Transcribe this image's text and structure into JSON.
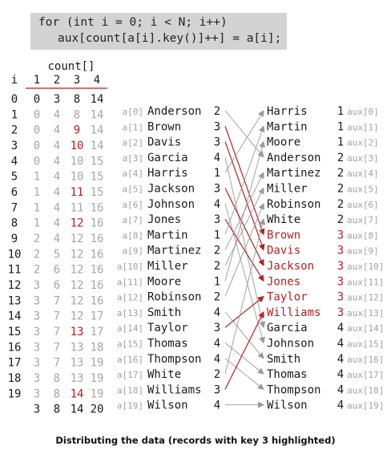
{
  "code": {
    "line1": "for (int i = 0; i < N; i++)",
    "line2": "aux[count[a[i].key()]++] = a[i];"
  },
  "count_table": {
    "title": "count[]",
    "i_header": "i",
    "col_headers": [
      "1",
      "2",
      "3",
      "4"
    ],
    "rows": [
      {
        "i": "0",
        "vals": [
          "0",
          "3",
          "8",
          "14"
        ],
        "hl": -1
      },
      {
        "i": "1",
        "vals": [
          "0",
          "4",
          "8",
          "14"
        ],
        "hl": -1
      },
      {
        "i": "2",
        "vals": [
          "0",
          "4",
          "9",
          "14"
        ],
        "hl": 2
      },
      {
        "i": "3",
        "vals": [
          "0",
          "4",
          "10",
          "14"
        ],
        "hl": 2
      },
      {
        "i": "4",
        "vals": [
          "0",
          "4",
          "10",
          "15"
        ],
        "hl": -1
      },
      {
        "i": "5",
        "vals": [
          "1",
          "4",
          "10",
          "15"
        ],
        "hl": -1
      },
      {
        "i": "6",
        "vals": [
          "1",
          "4",
          "11",
          "15"
        ],
        "hl": 2
      },
      {
        "i": "7",
        "vals": [
          "1",
          "4",
          "11",
          "16"
        ],
        "hl": -1
      },
      {
        "i": "8",
        "vals": [
          "1",
          "4",
          "12",
          "16"
        ],
        "hl": 2
      },
      {
        "i": "9",
        "vals": [
          "2",
          "4",
          "12",
          "16"
        ],
        "hl": -1
      },
      {
        "i": "10",
        "vals": [
          "2",
          "5",
          "12",
          "16"
        ],
        "hl": -1
      },
      {
        "i": "11",
        "vals": [
          "2",
          "6",
          "12",
          "16"
        ],
        "hl": -1
      },
      {
        "i": "12",
        "vals": [
          "3",
          "6",
          "12",
          "16"
        ],
        "hl": -1
      },
      {
        "i": "13",
        "vals": [
          "3",
          "7",
          "12",
          "16"
        ],
        "hl": -1
      },
      {
        "i": "14",
        "vals": [
          "3",
          "7",
          "12",
          "17"
        ],
        "hl": -1
      },
      {
        "i": "15",
        "vals": [
          "3",
          "7",
          "13",
          "17"
        ],
        "hl": 2
      },
      {
        "i": "16",
        "vals": [
          "3",
          "7",
          "13",
          "18"
        ],
        "hl": -1
      },
      {
        "i": "17",
        "vals": [
          "3",
          "7",
          "13",
          "19"
        ],
        "hl": -1
      },
      {
        "i": "18",
        "vals": [
          "3",
          "8",
          "13",
          "19"
        ],
        "hl": -1
      },
      {
        "i": "19",
        "vals": [
          "3",
          "8",
          "14",
          "19"
        ],
        "hl": 2
      },
      {
        "i": "",
        "vals": [
          "3",
          "8",
          "14",
          "20"
        ],
        "hl": -1
      }
    ],
    "final": [
      "3",
      "8",
      "14",
      "20"
    ]
  },
  "left_records": [
    {
      "label": "a[0]",
      "name": "Anderson",
      "key": "2"
    },
    {
      "label": "a[1]",
      "name": "Brown",
      "key": "3"
    },
    {
      "label": "a[2]",
      "name": "Davis",
      "key": "3"
    },
    {
      "label": "a[3]",
      "name": "Garcia",
      "key": "4"
    },
    {
      "label": "a[4]",
      "name": "Harris",
      "key": "1"
    },
    {
      "label": "a[5]",
      "name": "Jackson",
      "key": "3"
    },
    {
      "label": "a[6]",
      "name": "Johnson",
      "key": "4"
    },
    {
      "label": "a[7]",
      "name": "Jones",
      "key": "3"
    },
    {
      "label": "a[8]",
      "name": "Martin",
      "key": "1"
    },
    {
      "label": "a[9]",
      "name": "Martinez",
      "key": "2"
    },
    {
      "label": "a[10]",
      "name": "Miller",
      "key": "2"
    },
    {
      "label": "a[11]",
      "name": "Moore",
      "key": "1"
    },
    {
      "label": "a[12]",
      "name": "Robinson",
      "key": "2"
    },
    {
      "label": "a[13]",
      "name": "Smith",
      "key": "4"
    },
    {
      "label": "a[14]",
      "name": "Taylor",
      "key": "3"
    },
    {
      "label": "a[15]",
      "name": "Thomas",
      "key": "4"
    },
    {
      "label": "a[16]",
      "name": "Thompson",
      "key": "4"
    },
    {
      "label": "a[17]",
      "name": "White",
      "key": "2"
    },
    {
      "label": "a[18]",
      "name": "Williams",
      "key": "3"
    },
    {
      "label": "a[19]",
      "name": "Wilson",
      "key": "4"
    }
  ],
  "right_records": [
    {
      "label": "aux[0]",
      "name": "Harris",
      "key": "1"
    },
    {
      "label": "aux[1]",
      "name": "Martin",
      "key": "1"
    },
    {
      "label": "aux[2]",
      "name": "Moore",
      "key": "1"
    },
    {
      "label": "aux[3]",
      "name": "Anderson",
      "key": "2"
    },
    {
      "label": "aux[4]",
      "name": "Martinez",
      "key": "2"
    },
    {
      "label": "aux[5]",
      "name": "Miller",
      "key": "2"
    },
    {
      "label": "aux[6]",
      "name": "Robinson",
      "key": "2"
    },
    {
      "label": "aux[7]",
      "name": "White",
      "key": "2"
    },
    {
      "label": "aux[8]",
      "name": "Brown",
      "key": "3"
    },
    {
      "label": "aux[9]",
      "name": "Davis",
      "key": "3"
    },
    {
      "label": "aux[10]",
      "name": "Jackson",
      "key": "3"
    },
    {
      "label": "aux[11]",
      "name": "Jones",
      "key": "3"
    },
    {
      "label": "aux[12]",
      "name": "Taylor",
      "key": "3"
    },
    {
      "label": "aux[13]",
      "name": "Williams",
      "key": "3"
    },
    {
      "label": "aux[14]",
      "name": "Garcia",
      "key": "4"
    },
    {
      "label": "aux[15]",
      "name": "Johnson",
      "key": "4"
    },
    {
      "label": "aux[16]",
      "name": "Smith",
      "key": "4"
    },
    {
      "label": "aux[17]",
      "name": "Thomas",
      "key": "4"
    },
    {
      "label": "aux[18]",
      "name": "Thompson",
      "key": "4"
    },
    {
      "label": "aux[19]",
      "name": "Wilson",
      "key": "4"
    }
  ],
  "mapping": [
    3,
    8,
    9,
    14,
    0,
    10,
    15,
    11,
    1,
    4,
    5,
    2,
    6,
    16,
    12,
    17,
    18,
    7,
    13,
    19
  ],
  "highlight_key": "3",
  "colors": {
    "highlight": "#b22222",
    "label_gray": "#a0a0a0",
    "faded": "#a6a6a6",
    "arrow_gray": "#9a9a9a",
    "text": "#1a1a1a",
    "code_bg": "#d3d3d3"
  },
  "caption": "Distributing the data (records with key 3 highlighted)"
}
